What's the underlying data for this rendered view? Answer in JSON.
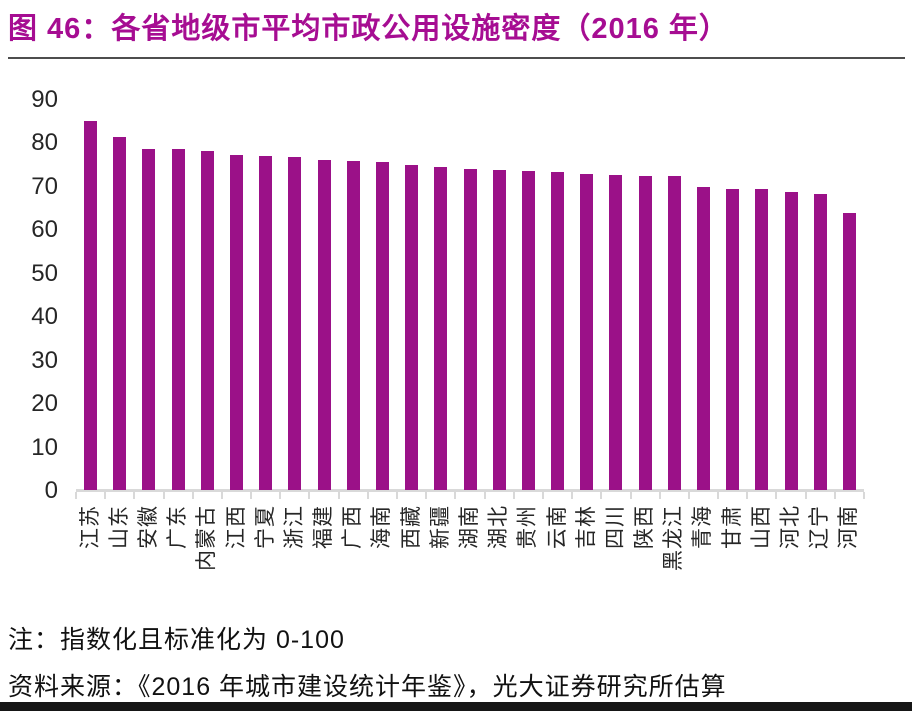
{
  "header": {
    "title": "图 46：各省地级市平均市政公用设施密度（2016 年）"
  },
  "footer": {
    "note": "注：指数化且标准化为 0-100",
    "source": "资料来源：《2016 年城市建设统计年鉴》，光大证券研究所估算"
  },
  "colors": {
    "title": "#a60d92",
    "bar": "#9b1188",
    "axis_line": "#d9d9d9",
    "axis_text": "#262626",
    "separator": "#4d4d4d",
    "bottom_bar": "#161616"
  },
  "chart_data": {
    "type": "bar",
    "title": "各省地级市平均市政公用设施密度（2016 年）",
    "xlabel": "",
    "ylabel": "",
    "ylim": [
      0,
      90
    ],
    "yticks": [
      0,
      10,
      20,
      30,
      40,
      50,
      60,
      70,
      80,
      90
    ],
    "grid": false,
    "legend": false,
    "bar_color": "#9b1188",
    "categories": [
      "江苏",
      "山东",
      "安徽",
      "广东",
      "内蒙古",
      "江西",
      "宁夏",
      "浙江",
      "福建",
      "广西",
      "海南",
      "西藏",
      "新疆",
      "湖南",
      "湖北",
      "贵州",
      "云南",
      "吉林",
      "四川",
      "陕西",
      "黑龙江",
      "青海",
      "甘肃",
      "山西",
      "河北",
      "辽宁",
      "河南"
    ],
    "values": [
      85.0,
      81.3,
      78.6,
      78.4,
      78.0,
      77.0,
      76.9,
      76.6,
      75.9,
      75.7,
      75.4,
      74.8,
      74.3,
      74.0,
      73.7,
      73.5,
      73.2,
      72.7,
      72.5,
      72.3,
      72.2,
      69.8,
      69.3,
      69.2,
      68.7,
      68.1,
      63.8
    ]
  }
}
